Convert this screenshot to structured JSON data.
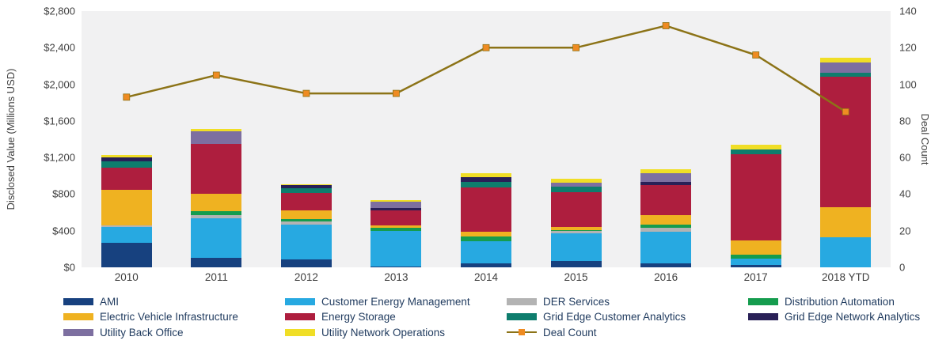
{
  "chart_data": {
    "type": "bar",
    "subtype": "stacked-bars-with-line-overlay",
    "title": "",
    "categories": [
      "2010",
      "2011",
      "2012",
      "2013",
      "2014",
      "2015",
      "2016",
      "2017",
      "2018 YTD"
    ],
    "left_axis": {
      "label": "Disclosed Value (Millions USD)",
      "min": 0,
      "max": 2800,
      "step": 400,
      "ticks": [
        {
          "value": 0,
          "label": "$0"
        },
        {
          "value": 400,
          "label": "$400"
        },
        {
          "value": 800,
          "label": "$800"
        },
        {
          "value": 1200,
          "label": "$1,200"
        },
        {
          "value": 1600,
          "label": "$1,600"
        },
        {
          "value": 2000,
          "label": "$2,000"
        },
        {
          "value": 2400,
          "label": "$2,400"
        },
        {
          "value": 2800,
          "label": "$2,800"
        }
      ]
    },
    "right_axis": {
      "label": "Deal Count",
      "min": 0,
      "max": 140,
      "step": 20,
      "ticks": [
        {
          "value": 0,
          "label": "0"
        },
        {
          "value": 20,
          "label": "20"
        },
        {
          "value": 40,
          "label": "40"
        },
        {
          "value": 60,
          "label": "60"
        },
        {
          "value": 80,
          "label": "80"
        },
        {
          "value": 100,
          "label": "100"
        },
        {
          "value": 120,
          "label": "120"
        },
        {
          "value": 140,
          "label": "140"
        }
      ]
    },
    "series": [
      {
        "name": "AMI",
        "color": "#17417f",
        "values": [
          270,
          100,
          85,
          10,
          45,
          70,
          45,
          25,
          0
        ]
      },
      {
        "name": "Customer Energy Management",
        "color": "#27a9e1",
        "values": [
          170,
          440,
          385,
          385,
          240,
          300,
          345,
          70,
          325
        ]
      },
      {
        "name": "DER Services",
        "color": "#b3b3b3",
        "values": [
          20,
          30,
          35,
          0,
          0,
          25,
          45,
          0,
          0
        ]
      },
      {
        "name": "Distribution Automation",
        "color": "#159c4e",
        "values": [
          0,
          45,
          25,
          35,
          50,
          10,
          30,
          40,
          0
        ]
      },
      {
        "name": "Electric Vehicle Infrastructure",
        "color": "#efb221",
        "values": [
          390,
          190,
          90,
          30,
          55,
          35,
          105,
          160,
          330
        ]
      },
      {
        "name": "Energy Storage",
        "color": "#ae1e3e",
        "values": [
          240,
          540,
          190,
          160,
          485,
          385,
          330,
          940,
          1430
        ]
      },
      {
        "name": "Grid Edge Customer Analytics",
        "color": "#0e7d6d",
        "values": [
          70,
          0,
          55,
          0,
          60,
          55,
          0,
          52,
          45
        ]
      },
      {
        "name": "Grid Edge Network Analytics",
        "color": "#292057",
        "values": [
          45,
          0,
          35,
          25,
          50,
          0,
          35,
          0,
          0
        ]
      },
      {
        "name": "Utility Back Office",
        "color": "#7d6fa0",
        "values": [
          0,
          140,
          0,
          72,
          0,
          48,
          90,
          0,
          112
        ]
      },
      {
        "name": "Utility Network Operations",
        "color": "#f0de26",
        "values": [
          20,
          25,
          10,
          20,
          40,
          40,
          46,
          50,
          45
        ]
      }
    ],
    "line_series": {
      "name": "Deal Count",
      "line_color": "#8c7317",
      "marker_color": "#ef8b22",
      "values": [
        93,
        105,
        95,
        95,
        120,
        120,
        132,
        116,
        85
      ]
    },
    "legend": {
      "entries": [
        {
          "label": "AMI",
          "color": "#17417f",
          "kind": "swatch",
          "col": 0,
          "row": 0
        },
        {
          "label": "Electric Vehicle Infrastructure",
          "color": "#efb221",
          "kind": "swatch",
          "col": 0,
          "row": 1
        },
        {
          "label": "Utility Back Office",
          "color": "#7d6fa0",
          "kind": "swatch",
          "col": 0,
          "row": 2
        },
        {
          "label": "Customer Energy Management",
          "color": "#27a9e1",
          "kind": "swatch",
          "col": 1,
          "row": 0
        },
        {
          "label": "Energy Storage",
          "color": "#ae1e3e",
          "kind": "swatch",
          "col": 1,
          "row": 1
        },
        {
          "label": "Utility Network Operations",
          "color": "#f0de26",
          "kind": "swatch",
          "col": 1,
          "row": 2
        },
        {
          "label": "DER Services",
          "color": "#b3b3b3",
          "kind": "swatch",
          "col": 2,
          "row": 0
        },
        {
          "label": "Grid Edge Customer Analytics",
          "color": "#0e7d6d",
          "kind": "swatch",
          "col": 2,
          "row": 1
        },
        {
          "label": "Deal Count",
          "color": "#8c7317",
          "marker_color": "#ef8b22",
          "kind": "line",
          "col": 2,
          "row": 2
        },
        {
          "label": "Distribution Automation",
          "color": "#159c4e",
          "kind": "swatch",
          "col": 3,
          "row": 0
        },
        {
          "label": "Grid Edge Network Analytics",
          "color": "#292057",
          "kind": "swatch",
          "col": 3,
          "row": 1
        }
      ]
    },
    "layout_hints": {
      "plot_background": "#f1f1f2",
      "grid": "off",
      "legend_position": "bottom"
    }
  }
}
